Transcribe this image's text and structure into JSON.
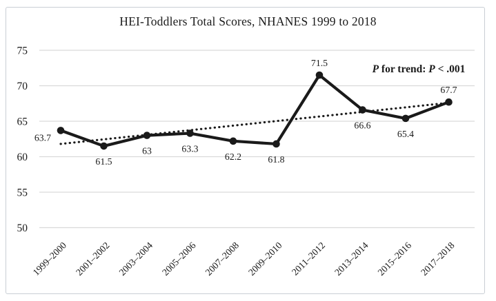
{
  "chart_data": {
    "type": "line",
    "title": "HEI-Toddlers Total Scores, NHANES 1999 to 2018",
    "categories": [
      "1999–2000",
      "2001–2002",
      "2003–2004",
      "2005–2006",
      "2007–2008",
      "2009–2010",
      "2011–2012",
      "2013–2014",
      "2015–2016",
      "2017–2018"
    ],
    "series": [
      {
        "name": "HEI-Toddlers Total Score",
        "values": [
          63.7,
          61.5,
          63,
          63.3,
          62.2,
          61.8,
          71.5,
          66.6,
          65.4,
          67.7
        ]
      }
    ],
    "point_labels": [
      "63.7",
      "61.5",
      "63",
      "63.3",
      "62.2",
      "61.8",
      "71.5",
      "66.6",
      "65.4",
      "67.7"
    ],
    "point_label_positions": [
      "left",
      "below",
      "below",
      "below",
      "below",
      "below",
      "above",
      "below",
      "below",
      "above"
    ],
    "trendline": {
      "style": "dotted",
      "start_value": 61.8,
      "end_value": 67.6
    },
    "annotation": {
      "p1_italic": "P",
      "middle": " for trend: ",
      "p2_italic": "P",
      "suffix": " < .001"
    },
    "yticks": [
      75,
      70,
      65,
      60,
      55,
      50
    ],
    "ylim": [
      50,
      77.5
    ],
    "xlabel": "",
    "ylabel": "",
    "grid": "horizontal",
    "legend": "none",
    "colors": {
      "line": "#1a1a1a",
      "grid": "#d9d9d9",
      "text": "#1a1a1a",
      "frame_border": "#c9ced4"
    }
  }
}
